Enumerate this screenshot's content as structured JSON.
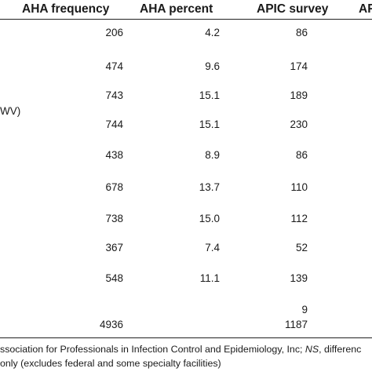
{
  "table": {
    "headers": {
      "aha_frequency": "AHA frequency",
      "aha_percent": "AHA percent",
      "apic_survey": "APIC survey",
      "partial": "AF"
    },
    "row_label_fragments": {
      "row3": "WV)"
    },
    "rows": [
      {
        "aha_frequency": "206",
        "aha_percent": "4.2",
        "apic_survey": "86"
      },
      {
        "aha_frequency": "474",
        "aha_percent": "9.6",
        "apic_survey": "174"
      },
      {
        "aha_frequency": "743",
        "aha_percent": "15.1",
        "apic_survey": "189"
      },
      {
        "aha_frequency": "744",
        "aha_percent": "15.1",
        "apic_survey": "230"
      },
      {
        "aha_frequency": "438",
        "aha_percent": "8.9",
        "apic_survey": "86"
      },
      {
        "aha_frequency": "678",
        "aha_percent": "13.7",
        "apic_survey": "110"
      },
      {
        "aha_frequency": "738",
        "aha_percent": "15.0",
        "apic_survey": "112"
      },
      {
        "aha_frequency": "367",
        "aha_percent": "7.4",
        "apic_survey": "52"
      },
      {
        "aha_frequency": "548",
        "aha_percent": "11.1",
        "apic_survey": "139"
      }
    ],
    "extra_apic_value": "9",
    "totals": {
      "aha_frequency": "4936",
      "apic_survey": "1187"
    }
  },
  "footnotes": {
    "line1_prefix": "ssociation for Professionals in Infection Control and Epidemiology, Inc; ",
    "line1_ns": "NS",
    "line1_suffix": ", differenc",
    "line2": " only (excludes federal and some specialty facilities)"
  }
}
